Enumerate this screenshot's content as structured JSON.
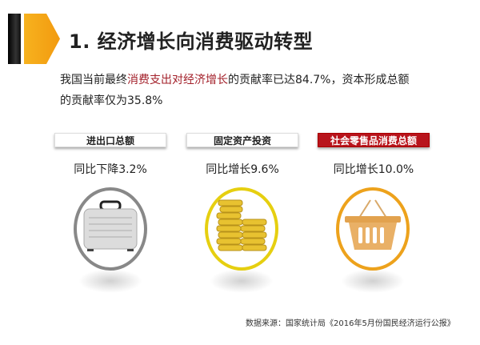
{
  "title": "1. 经济增长向消费驱动转型",
  "paragraph": {
    "line1_prefix": "我国当前最终",
    "line1_highlight": "消费支出对经济增长",
    "line1_suffix": "的贡献率已达84.7%，资本形成总额",
    "line2": "的贡献率仅为35.8%",
    "highlight_color": "#a3202a"
  },
  "cards": [
    {
      "label": "进出口总额",
      "stat": "同比下降3.2%",
      "icon": "briefcase-icon"
    },
    {
      "label": "固定资产投资",
      "stat": "同比增长9.6%",
      "icon": "coins-icon"
    },
    {
      "label": "社会零售品消费总额",
      "stat": "同比增长10.0%",
      "icon": "basket-icon",
      "accent": "#b8141c"
    }
  ],
  "footer": "数据来源：国家统计局《2016年5月份国民经济运行公报》"
}
